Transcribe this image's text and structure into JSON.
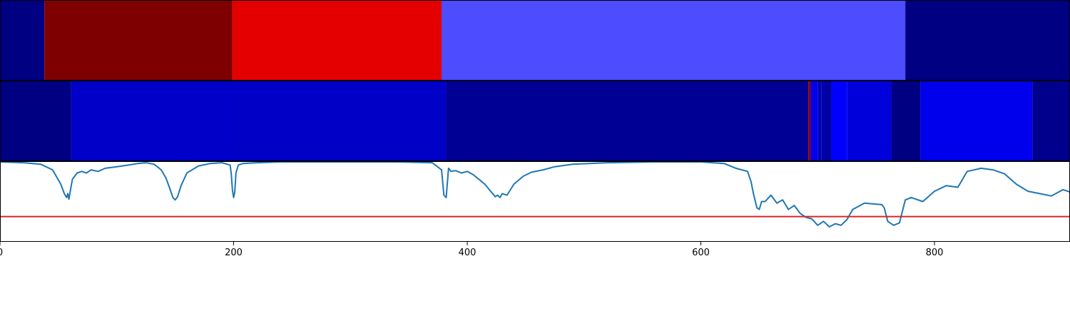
{
  "chart_data": [
    {
      "type": "heatmap",
      "colormap": "seismic",
      "x_range": [
        0,
        916
      ],
      "segments": [
        {
          "start": 0,
          "end": 38,
          "value": -0.85
        },
        {
          "start": 38,
          "end": 199,
          "value": 1.0
        },
        {
          "start": 199,
          "end": 378,
          "value": 0.6
        },
        {
          "start": 378,
          "end": 775,
          "value": -0.35
        },
        {
          "start": 775,
          "end": 916,
          "value": -0.85
        }
      ]
    },
    {
      "type": "heatmap",
      "colormap": "seismic",
      "x_range": [
        0,
        916
      ],
      "segments": [
        {
          "start": 0,
          "end": 61,
          "value": -0.85
        },
        {
          "start": 61,
          "end": 200,
          "value": -0.65
        },
        {
          "start": 200,
          "end": 382,
          "value": -0.66
        },
        {
          "start": 382,
          "end": 692,
          "value": -0.8
        },
        {
          "start": 692,
          "end": 694,
          "value": 0.95
        },
        {
          "start": 694,
          "end": 700,
          "value": -0.55
        },
        {
          "start": 700,
          "end": 703,
          "value": -0.7
        },
        {
          "start": 703,
          "end": 712,
          "value": -0.75
        },
        {
          "start": 712,
          "end": 725,
          "value": -0.5
        },
        {
          "start": 725,
          "end": 763,
          "value": -0.6
        },
        {
          "start": 763,
          "end": 788,
          "value": -0.85
        },
        {
          "start": 788,
          "end": 884,
          "value": -0.55
        },
        {
          "start": 884,
          "end": 916,
          "value": -0.82
        }
      ]
    },
    {
      "type": "line",
      "x_range": [
        0,
        916
      ],
      "y_range": [
        0,
        1
      ],
      "x_ticks": [
        0,
        200,
        400,
        600,
        800
      ],
      "x_tick_labels": [
        "0",
        "200",
        "400",
        "600",
        "800"
      ],
      "threshold": 0.31,
      "colors": {
        "line": "#1f77b4",
        "threshold": "#d62728"
      },
      "series": [
        {
          "x": [
            0,
            20,
            35,
            45,
            52,
            55,
            57,
            58,
            59,
            60,
            62,
            66,
            70,
            74,
            78,
            84,
            90,
            100,
            110,
            118,
            125,
            132,
            138,
            142,
            145,
            148,
            150,
            152,
            155,
            160,
            170,
            180,
            190,
            197,
            198,
            199,
            200,
            201,
            202,
            204,
            208,
            220,
            240,
            260,
            300,
            340,
            370,
            378,
            380,
            382,
            384,
            386,
            390,
            395,
            400,
            405,
            410,
            415,
            420,
            424,
            426,
            428,
            430,
            434,
            440,
            448,
            455,
            465,
            475,
            490,
            520,
            560,
            600,
            620,
            630,
            640,
            643,
            645,
            648,
            650,
            652,
            655,
            660,
            665,
            670,
            675,
            680,
            685,
            690,
            695,
            700,
            705,
            710,
            715,
            720,
            725,
            730,
            740,
            755,
            757,
            760,
            765,
            770,
            775,
            780,
            790,
            800,
            810,
            820,
            828,
            840,
            850,
            860,
            870,
            880,
            890,
            900,
            910,
            916
          ],
          "y": [
            1.0,
            0.99,
            0.97,
            0.9,
            0.72,
            0.6,
            0.55,
            0.6,
            0.53,
            0.62,
            0.78,
            0.86,
            0.88,
            0.86,
            0.9,
            0.88,
            0.92,
            0.94,
            0.96,
            0.98,
            0.99,
            0.97,
            0.9,
            0.8,
            0.68,
            0.55,
            0.52,
            0.56,
            0.7,
            0.86,
            0.95,
            0.98,
            0.99,
            0.96,
            0.85,
            0.64,
            0.55,
            0.62,
            0.86,
            0.96,
            0.98,
            0.99,
            1.0,
            1.0,
            1.0,
            1.0,
            0.99,
            0.9,
            0.58,
            0.55,
            0.92,
            0.88,
            0.89,
            0.86,
            0.88,
            0.84,
            0.78,
            0.72,
            0.63,
            0.56,
            0.58,
            0.55,
            0.6,
            0.58,
            0.72,
            0.82,
            0.87,
            0.9,
            0.94,
            0.97,
            0.99,
            1.0,
            1.0,
            0.98,
            0.92,
            0.88,
            0.75,
            0.6,
            0.42,
            0.4,
            0.5,
            0.5,
            0.58,
            0.48,
            0.52,
            0.4,
            0.45,
            0.35,
            0.3,
            0.28,
            0.2,
            0.25,
            0.18,
            0.22,
            0.2,
            0.27,
            0.4,
            0.48,
            0.46,
            0.42,
            0.25,
            0.2,
            0.23,
            0.52,
            0.55,
            0.5,
            0.63,
            0.7,
            0.68,
            0.88,
            0.92,
            0.9,
            0.85,
            0.72,
            0.63,
            0.6,
            0.57,
            0.65,
            0.62
          ]
        }
      ]
    }
  ]
}
